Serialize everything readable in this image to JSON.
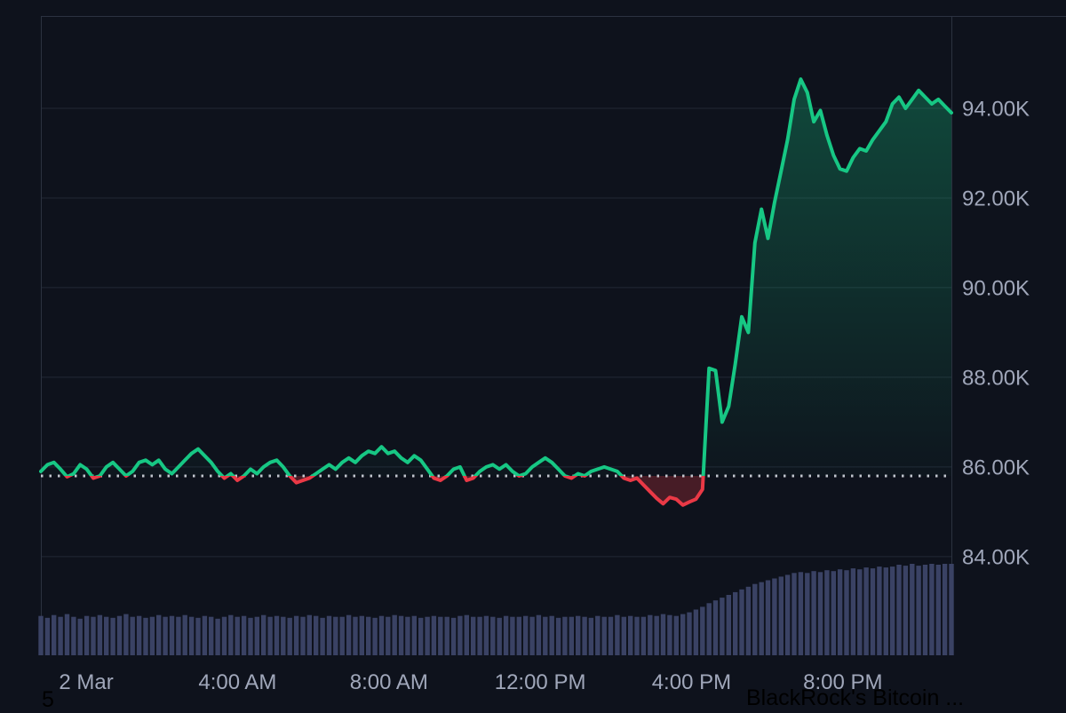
{
  "page": {
    "background": "#0e121c",
    "footer_left_text": "5",
    "news_ticker_text": "BlackRock's Bitcoin ..."
  },
  "chart_data": {
    "type": "line",
    "title": "",
    "x_axis": {
      "tick_labels": [
        "2 Mar",
        "4:00 AM",
        "8:00 AM",
        "12:00 PM",
        "4:00 PM",
        "8:00 PM"
      ],
      "tick_hours": [
        0,
        4,
        8,
        12,
        16,
        20
      ],
      "domain_hours": [
        -1.2,
        22.87
      ],
      "grid": false
    },
    "y_axis": {
      "tick_labels": [
        "94.00K",
        "92.00K",
        "90.00K",
        "88.00K",
        "86.00K",
        "84.00K"
      ],
      "tick_values": [
        94,
        92,
        90,
        88,
        86,
        84
      ],
      "domain": [
        81.66,
        96.06
      ],
      "unit": "thousand USD",
      "grid": true
    },
    "baseline_value": 85.8,
    "price_series_k": [
      85.9,
      86.05,
      86.1,
      85.95,
      85.78,
      85.85,
      86.05,
      85.95,
      85.75,
      85.8,
      86.0,
      86.1,
      85.95,
      85.8,
      85.9,
      86.1,
      86.15,
      86.05,
      86.15,
      85.95,
      85.85,
      86.0,
      86.15,
      86.3,
      86.4,
      86.25,
      86.1,
      85.9,
      85.75,
      85.85,
      85.7,
      85.8,
      85.95,
      85.85,
      86.0,
      86.1,
      86.15,
      86.0,
      85.8,
      85.65,
      85.7,
      85.75,
      85.85,
      85.95,
      86.05,
      85.95,
      86.1,
      86.2,
      86.1,
      86.25,
      86.35,
      86.3,
      86.45,
      86.3,
      86.35,
      86.2,
      86.1,
      86.25,
      86.15,
      85.95,
      85.75,
      85.7,
      85.8,
      85.95,
      86.0,
      85.7,
      85.75,
      85.9,
      86.0,
      86.05,
      85.95,
      86.05,
      85.9,
      85.8,
      85.85,
      86.0,
      86.1,
      86.2,
      86.1,
      85.95,
      85.8,
      85.75,
      85.85,
      85.8,
      85.9,
      85.95,
      86.0,
      85.95,
      85.9,
      85.75,
      85.7,
      85.75,
      85.6,
      85.45,
      85.3,
      85.18,
      85.32,
      85.28,
      85.15,
      85.22,
      85.28,
      85.5,
      88.2,
      88.15,
      87.0,
      87.35,
      88.3,
      89.35,
      89.0,
      91.0,
      91.75,
      91.1,
      91.9,
      92.6,
      93.3,
      94.2,
      94.65,
      94.35,
      93.7,
      93.95,
      93.4,
      92.95,
      92.65,
      92.6,
      92.9,
      93.1,
      93.05,
      93.3,
      93.5,
      93.7,
      94.1,
      94.25,
      94.0,
      94.2,
      94.4,
      94.25,
      94.1,
      94.2,
      94.05,
      93.9
    ],
    "volume_series_rel": [
      0.43,
      0.41,
      0.44,
      0.42,
      0.45,
      0.42,
      0.4,
      0.43,
      0.42,
      0.44,
      0.42,
      0.41,
      0.43,
      0.45,
      0.42,
      0.43,
      0.41,
      0.42,
      0.44,
      0.42,
      0.43,
      0.42,
      0.44,
      0.42,
      0.41,
      0.43,
      0.42,
      0.4,
      0.42,
      0.44,
      0.42,
      0.43,
      0.41,
      0.42,
      0.44,
      0.42,
      0.43,
      0.42,
      0.41,
      0.43,
      0.42,
      0.44,
      0.43,
      0.41,
      0.43,
      0.42,
      0.42,
      0.44,
      0.42,
      0.43,
      0.42,
      0.41,
      0.43,
      0.42,
      0.44,
      0.43,
      0.42,
      0.43,
      0.41,
      0.42,
      0.43,
      0.42,
      0.42,
      0.41,
      0.43,
      0.44,
      0.42,
      0.42,
      0.43,
      0.42,
      0.41,
      0.43,
      0.42,
      0.42,
      0.43,
      0.42,
      0.44,
      0.42,
      0.43,
      0.41,
      0.42,
      0.42,
      0.43,
      0.42,
      0.41,
      0.43,
      0.42,
      0.42,
      0.44,
      0.42,
      0.43,
      0.42,
      0.42,
      0.44,
      0.43,
      0.45,
      0.44,
      0.43,
      0.45,
      0.47,
      0.5,
      0.53,
      0.57,
      0.6,
      0.63,
      0.66,
      0.69,
      0.72,
      0.75,
      0.78,
      0.8,
      0.82,
      0.84,
      0.86,
      0.88,
      0.9,
      0.91,
      0.9,
      0.92,
      0.91,
      0.93,
      0.92,
      0.94,
      0.93,
      0.95,
      0.94,
      0.96,
      0.95,
      0.97,
      0.96,
      0.97,
      0.99,
      0.98,
      1.0,
      0.98,
      0.99,
      1.0,
      0.99,
      1.0,
      1.0
    ],
    "legend": [],
    "colors": {
      "up": "#17c784",
      "down": "#ea3946",
      "up_fill_top": "rgba(22,199,132,0.35)",
      "up_fill_bottom": "rgba(22,199,132,0.02)",
      "down_fill": "rgba(234,57,70,0.26)",
      "baseline_dots": "#e2e6ee",
      "grid": "#222835",
      "axis_border": "#2b3240",
      "volume_bar": "#3a4264",
      "label": "#a0a7ba"
    }
  }
}
